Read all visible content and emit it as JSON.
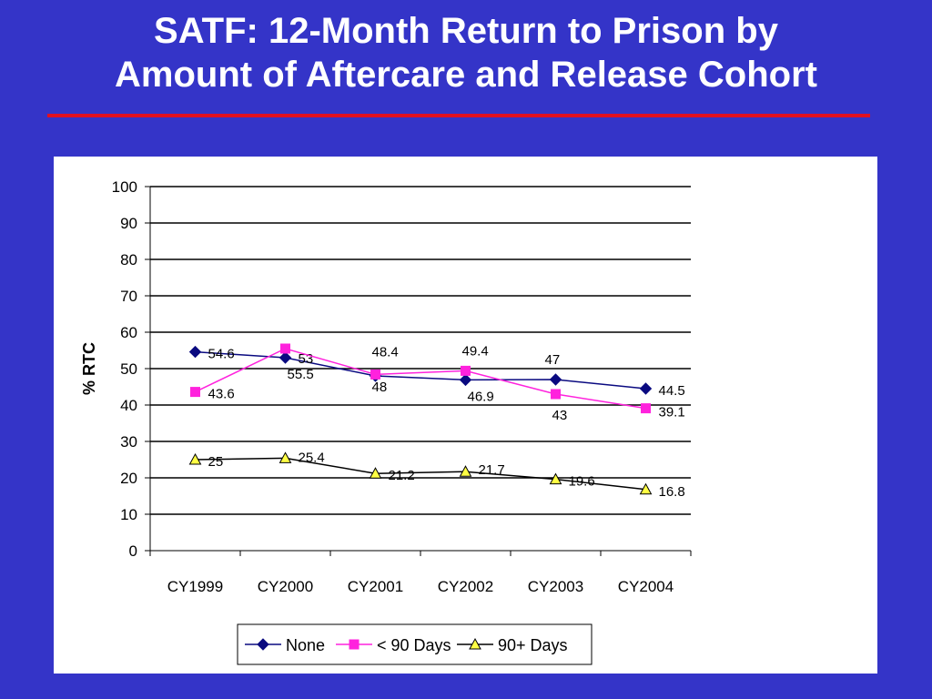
{
  "slide": {
    "title_line1": "SATF: 12-Month Return to Prison by",
    "title_line2": "Amount of Aftercare and Release Cohort",
    "title_color": "#ffffff",
    "background_color": "#3434c8",
    "rule_color": "#e01020"
  },
  "chart_data": {
    "type": "line",
    "title": "",
    "xlabel": "",
    "ylabel": "% RTC",
    "categories": [
      "CY1999",
      "CY2000",
      "CY2001",
      "CY2002",
      "CY2003",
      "CY2004"
    ],
    "ylim": [
      0,
      100
    ],
    "yticks": [
      "0",
      "10",
      "20",
      "30",
      "40",
      "50",
      "60",
      "70",
      "80",
      "90",
      "100"
    ],
    "grid": true,
    "legend": "bottom",
    "series": [
      {
        "name": "None",
        "color": "#0a0a80",
        "marker": "diamond",
        "values": [
          54.6,
          53,
          48,
          46.9,
          47,
          44.5
        ],
        "labels": [
          "54.6",
          "53",
          "48",
          "46.9",
          "47",
          "44.5"
        ]
      },
      {
        "name": "< 90 Days",
        "color": "#ff22dd",
        "marker": "square",
        "values": [
          43.6,
          55.5,
          48.4,
          49.4,
          43,
          39.1
        ],
        "labels": [
          "43.6",
          "55.5",
          "48.4",
          "49.4",
          "43",
          "39.1"
        ]
      },
      {
        "name": "90+ Days",
        "color": "#000000",
        "marker": "triangle",
        "marker_fill": "#ffff44",
        "values": [
          25,
          25.4,
          21.2,
          21.7,
          19.6,
          16.8
        ],
        "labels": [
          "25",
          "25.4",
          "21.2",
          "21.7",
          "19.6",
          "16.8"
        ]
      }
    ]
  }
}
